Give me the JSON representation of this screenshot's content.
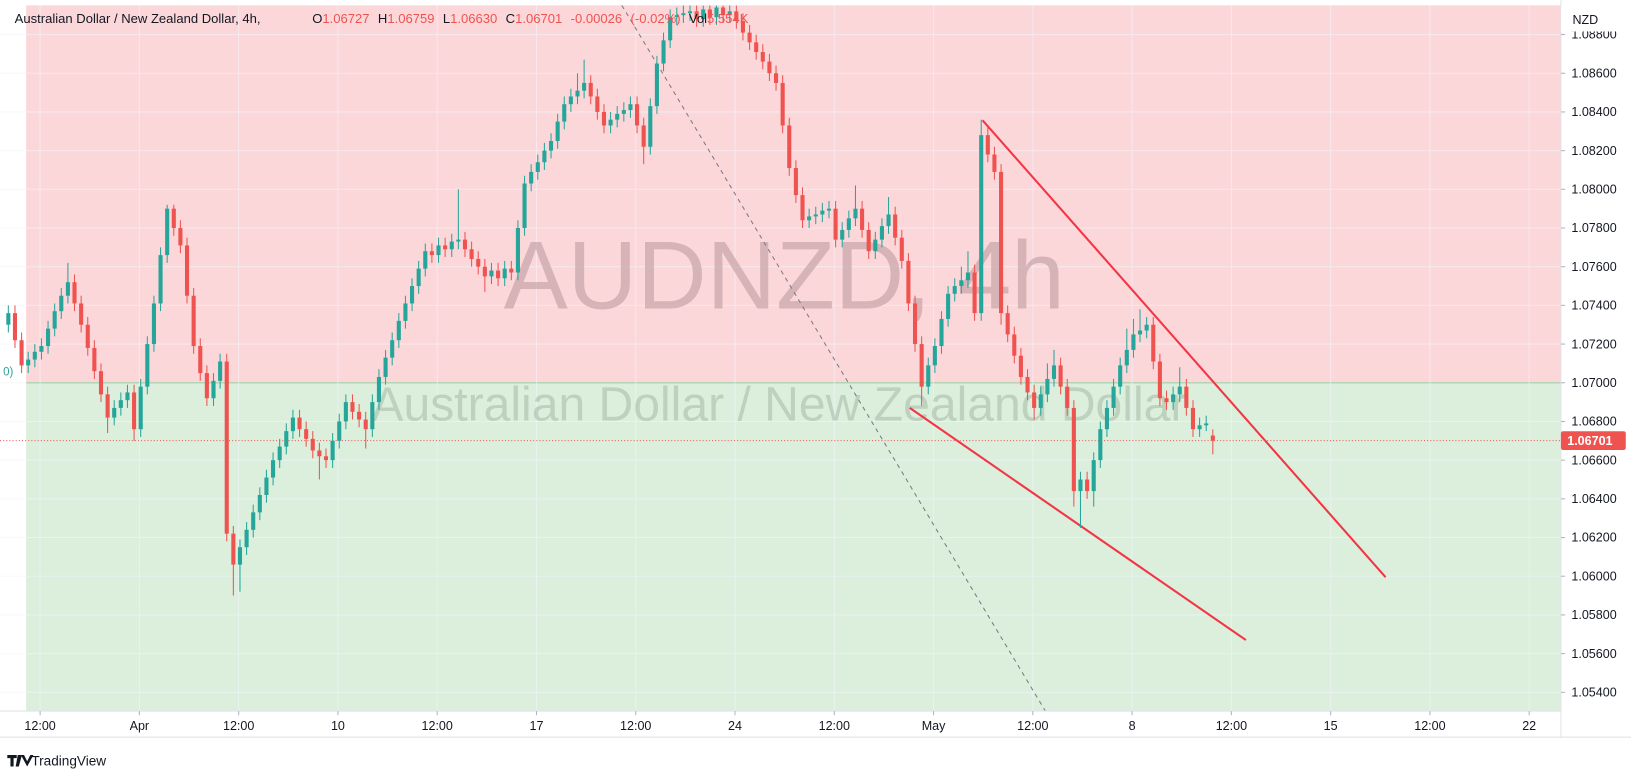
{
  "chart_data": {
    "type": "candlestick",
    "title": "Australian Dollar / New Zealand Dollar, 4h,",
    "ohlc_header": [
      {
        "label": "O",
        "value": "1.06727"
      },
      {
        "label": "H",
        "value": "1.06759"
      },
      {
        "label": "L",
        "value": "1.06630"
      },
      {
        "label": "C",
        "value": "1.06701"
      },
      {
        "label": "",
        "value": "-0.00026"
      },
      {
        "label": "",
        "value": "(-0.02%)"
      },
      {
        "label": "Vol",
        "value": "5.554K"
      }
    ],
    "watermark": "AUDNZD, 4h",
    "watermark_subtitle": "Australian Dollar / New Zealand Dollar",
    "currency": "NZD",
    "edge_fragment": "0)",
    "brand": "TradingView",
    "last_price": 1.06701,
    "position_entry": 1.07,
    "up_color": "#26a69a",
    "down_color": "#ef5350",
    "grid": true,
    "xlim": [
      -1.26,
      234.6
    ],
    "ylim": [
      1.05303,
      1.08951
    ],
    "xticks": [
      {
        "value": 4.8,
        "label": "12:00"
      },
      {
        "value": 19.8,
        "label": "Apr"
      },
      {
        "value": 34.8,
        "label": "12:00"
      },
      {
        "value": 49.8,
        "label": "10"
      },
      {
        "value": 64.8,
        "label": "12:00"
      },
      {
        "value": 79.8,
        "label": "17"
      },
      {
        "value": 94.8,
        "label": "12:00"
      },
      {
        "value": 109.8,
        "label": "24"
      },
      {
        "value": 124.8,
        "label": "12:00"
      },
      {
        "value": 139.8,
        "label": "May"
      },
      {
        "value": 154.8,
        "label": "12:00"
      },
      {
        "value": 169.8,
        "label": "8"
      },
      {
        "value": 184.8,
        "label": "12:00"
      },
      {
        "value": 199.8,
        "label": "15"
      },
      {
        "value": 214.8,
        "label": "12:00"
      },
      {
        "value": 229.8,
        "label": "22"
      }
    ],
    "yticks": [
      {
        "value": 1.054,
        "label": "1.05400"
      },
      {
        "value": 1.056,
        "label": "1.05600"
      },
      {
        "value": 1.058,
        "label": "1.05800"
      },
      {
        "value": 1.06,
        "label": "1.06000"
      },
      {
        "value": 1.062,
        "label": "1.06200"
      },
      {
        "value": 1.064,
        "label": "1.06400"
      },
      {
        "value": 1.066,
        "label": "1.06600"
      },
      {
        "value": 1.068,
        "label": "1.06800"
      },
      {
        "value": 1.07,
        "label": "1.07000"
      },
      {
        "value": 1.072,
        "label": "1.07200"
      },
      {
        "value": 1.074,
        "label": "1.07400"
      },
      {
        "value": 1.076,
        "label": "1.07600"
      },
      {
        "value": 1.078,
        "label": "1.07800"
      },
      {
        "value": 1.08,
        "label": "1.08000"
      },
      {
        "value": 1.082,
        "label": "1.08200"
      },
      {
        "value": 1.084,
        "label": "1.08400"
      },
      {
        "value": 1.086,
        "label": "1.08600"
      },
      {
        "value": 1.088,
        "label": "1.08800"
      }
    ],
    "drawings": [
      {
        "kind": "trend",
        "color": "#f23645",
        "x": [
          147.2,
          208.1
        ],
        "y": [
          1.08357,
          1.05995
        ]
      },
      {
        "kind": "trend",
        "color": "#f23645",
        "x": [
          136.2,
          187.0
        ],
        "y": [
          1.0687,
          1.0567
        ]
      },
      {
        "kind": "dashed",
        "color": "#787b86",
        "x": [
          92.7,
          156.7
        ],
        "y": [
          1.08951,
          1.05303
        ]
      }
    ],
    "ohlc": [
      [
        1.073,
        1.074,
        1.0726,
        1.0736
      ],
      [
        1.0736,
        1.074,
        1.0718,
        1.0722
      ],
      [
        1.0722,
        1.0726,
        1.0705,
        1.0709
      ],
      [
        1.0709,
        1.0716,
        1.0705,
        1.0712
      ],
      [
        1.0712,
        1.072,
        1.0708,
        1.0716
      ],
      [
        1.0716,
        1.0723,
        1.0712,
        1.0719
      ],
      [
        1.0719,
        1.0732,
        1.0715,
        1.0728
      ],
      [
        1.0728,
        1.0741,
        1.0724,
        1.0737
      ],
      [
        1.0737,
        1.0749,
        1.0733,
        1.0745
      ],
      [
        1.0745,
        1.0762,
        1.0741,
        1.0752
      ],
      [
        1.0752,
        1.0756,
        1.0737,
        1.0741
      ],
      [
        1.0741,
        1.0745,
        1.0726,
        1.073
      ],
      [
        1.073,
        1.0734,
        1.0714,
        1.0718
      ],
      [
        1.0718,
        1.0722,
        1.0702,
        1.0706
      ],
      [
        1.0706,
        1.071,
        1.069,
        1.0694
      ],
      [
        1.0694,
        1.0698,
        1.0674,
        1.0682
      ],
      [
        1.0682,
        1.0691,
        1.0678,
        1.0687
      ],
      [
        1.0687,
        1.0695,
        1.0683,
        1.0691
      ],
      [
        1.0691,
        1.0699,
        1.0687,
        1.0695
      ],
      [
        1.0695,
        1.0699,
        1.067,
        1.0676
      ],
      [
        1.0676,
        1.0702,
        1.0672,
        1.0698
      ],
      [
        1.0698,
        1.0724,
        1.0694,
        1.072
      ],
      [
        1.072,
        1.0745,
        1.0716,
        1.0741
      ],
      [
        1.0741,
        1.077,
        1.0737,
        1.0766
      ],
      [
        1.0766,
        1.0792,
        1.0762,
        1.079
      ],
      [
        1.079,
        1.0792,
        1.0776,
        1.078
      ],
      [
        1.078,
        1.0784,
        1.0767,
        1.0771
      ],
      [
        1.0771,
        1.0775,
        1.0741,
        1.0745
      ],
      [
        1.0745,
        1.0749,
        1.0715,
        1.0719
      ],
      [
        1.0719,
        1.0723,
        1.0701,
        1.0705
      ],
      [
        1.0705,
        1.0709,
        1.0688,
        1.0692
      ],
      [
        1.0692,
        1.0705,
        1.0688,
        1.0701
      ],
      [
        1.0701,
        1.0715,
        1.0697,
        1.0711
      ],
      [
        1.0711,
        1.0715,
        1.0618,
        1.0622
      ],
      [
        1.0622,
        1.0626,
        1.059,
        1.0606
      ],
      [
        1.0606,
        1.0619,
        1.0592,
        1.0615
      ],
      [
        1.0615,
        1.0628,
        1.0611,
        1.0624
      ],
      [
        1.0624,
        1.0637,
        1.062,
        1.0633
      ],
      [
        1.0633,
        1.0646,
        1.0629,
        1.0642
      ],
      [
        1.0642,
        1.0655,
        1.0638,
        1.0651
      ],
      [
        1.0651,
        1.0664,
        1.0647,
        1.066
      ],
      [
        1.066,
        1.0671,
        1.0656,
        1.0667
      ],
      [
        1.0667,
        1.0679,
        1.0663,
        1.0675
      ],
      [
        1.0675,
        1.0686,
        1.0671,
        1.0682
      ],
      [
        1.0682,
        1.0686,
        1.0672,
        1.0676
      ],
      [
        1.0676,
        1.068,
        1.0667,
        1.0671
      ],
      [
        1.0671,
        1.0675,
        1.0661,
        1.0665
      ],
      [
        1.0665,
        1.0669,
        1.065,
        1.0662
      ],
      [
        1.0662,
        1.0666,
        1.0656,
        1.066
      ],
      [
        1.066,
        1.0674,
        1.0656,
        1.067
      ],
      [
        1.067,
        1.0684,
        1.0666,
        1.068
      ],
      [
        1.068,
        1.0694,
        1.0676,
        1.069
      ],
      [
        1.069,
        1.0694,
        1.0681,
        1.0685
      ],
      [
        1.0685,
        1.0689,
        1.0677,
        1.0681
      ],
      [
        1.0681,
        1.0685,
        1.0666,
        1.0676
      ],
      [
        1.0676,
        1.0694,
        1.0672,
        1.069
      ],
      [
        1.069,
        1.0707,
        1.0686,
        1.0703
      ],
      [
        1.0703,
        1.0717,
        1.0699,
        1.0713
      ],
      [
        1.0713,
        1.0726,
        1.0709,
        1.0722
      ],
      [
        1.0722,
        1.0736,
        1.0718,
        1.0732
      ],
      [
        1.0732,
        1.0745,
        1.0728,
        1.0741
      ],
      [
        1.0741,
        1.0754,
        1.0737,
        1.075
      ],
      [
        1.075,
        1.0763,
        1.0746,
        1.0759
      ],
      [
        1.0759,
        1.0772,
        1.0755,
        1.0768
      ],
      [
        1.0768,
        1.0772,
        1.0762,
        1.0766
      ],
      [
        1.0766,
        1.0775,
        1.0762,
        1.0771
      ],
      [
        1.0771,
        1.0775,
        1.0765,
        1.0769
      ],
      [
        1.0769,
        1.0777,
        1.0765,
        1.0773
      ],
      [
        1.0773,
        1.08,
        1.0769,
        1.0774
      ],
      [
        1.0774,
        1.0778,
        1.0765,
        1.0769
      ],
      [
        1.0769,
        1.0773,
        1.076,
        1.0764
      ],
      [
        1.0764,
        1.0768,
        1.0756,
        1.076
      ],
      [
        1.076,
        1.0764,
        1.0747,
        1.0755
      ],
      [
        1.0755,
        1.0762,
        1.0751,
        1.0758
      ],
      [
        1.0758,
        1.0762,
        1.075,
        1.0754
      ],
      [
        1.0754,
        1.0763,
        1.075,
        1.0759
      ],
      [
        1.0759,
        1.0763,
        1.0753,
        1.0757
      ],
      [
        1.0757,
        1.0784,
        1.0753,
        1.078
      ],
      [
        1.078,
        1.0807,
        1.0776,
        1.0803
      ],
      [
        1.0803,
        1.0813,
        1.0799,
        1.0809
      ],
      [
        1.0809,
        1.0818,
        1.0805,
        1.0814
      ],
      [
        1.0814,
        1.0824,
        1.081,
        1.082
      ],
      [
        1.082,
        1.0829,
        1.0816,
        1.0825
      ],
      [
        1.0825,
        1.0839,
        1.0821,
        1.0835
      ],
      [
        1.0835,
        1.0848,
        1.0831,
        1.0844
      ],
      [
        1.0844,
        1.0852,
        1.084,
        1.0848
      ],
      [
        1.0848,
        1.086,
        1.0844,
        1.0851
      ],
      [
        1.0851,
        1.0867,
        1.0847,
        1.0855
      ],
      [
        1.0855,
        1.0859,
        1.0844,
        1.0848
      ],
      [
        1.0848,
        1.0852,
        1.0836,
        1.084
      ],
      [
        1.084,
        1.0844,
        1.0829,
        1.0833
      ],
      [
        1.0833,
        1.084,
        1.0829,
        1.0836
      ],
      [
        1.0836,
        1.0843,
        1.0832,
        1.0839
      ],
      [
        1.0839,
        1.0845,
        1.0835,
        1.0841
      ],
      [
        1.0841,
        1.0848,
        1.0837,
        1.0844
      ],
      [
        1.0844,
        1.0848,
        1.0829,
        1.0833
      ],
      [
        1.0833,
        1.0837,
        1.0813,
        1.0822
      ],
      [
        1.0822,
        1.0847,
        1.0818,
        1.0843
      ],
      [
        1.0843,
        1.0869,
        1.0839,
        1.0865
      ],
      [
        1.0865,
        1.0881,
        1.0861,
        1.0877
      ],
      [
        1.0877,
        1.0893,
        1.0873,
        1.0889
      ],
      [
        1.0889,
        1.0894,
        1.0885,
        1.089
      ],
      [
        1.089,
        1.0895,
        1.0886,
        1.0891
      ],
      [
        1.0891,
        1.0895,
        1.0887,
        1.0892
      ],
      [
        1.0892,
        1.0895,
        1.0884,
        1.0888
      ],
      [
        1.0888,
        1.0895,
        1.0884,
        1.0893
      ],
      [
        1.0893,
        1.0895,
        1.0885,
        1.0889
      ],
      [
        1.0889,
        1.0895,
        1.0885,
        1.0894
      ],
      [
        1.0894,
        1.0895,
        1.0886,
        1.089
      ],
      [
        1.089,
        1.0895,
        1.0886,
        1.0892
      ],
      [
        1.0892,
        1.0895,
        1.0883,
        1.0887
      ],
      [
        1.0887,
        1.0891,
        1.0877,
        1.0881
      ],
      [
        1.0881,
        1.0885,
        1.0872,
        1.0876
      ],
      [
        1.0876,
        1.088,
        1.0867,
        1.0871
      ],
      [
        1.0871,
        1.0875,
        1.0862,
        1.0866
      ],
      [
        1.0866,
        1.087,
        1.0856,
        1.086
      ],
      [
        1.086,
        1.0864,
        1.0851,
        1.0855
      ],
      [
        1.0855,
        1.0859,
        1.0829,
        1.0833
      ],
      [
        1.0833,
        1.0837,
        1.0807,
        1.0811
      ],
      [
        1.0811,
        1.0815,
        1.0793,
        1.0797
      ],
      [
        1.0797,
        1.0801,
        1.078,
        1.0784
      ],
      [
        1.0784,
        1.079,
        1.078,
        1.0786
      ],
      [
        1.0786,
        1.0791,
        1.0782,
        1.0787
      ],
      [
        1.0787,
        1.0793,
        1.0783,
        1.0789
      ],
      [
        1.0789,
        1.0794,
        1.0785,
        1.079
      ],
      [
        1.079,
        1.0794,
        1.077,
        1.0774
      ],
      [
        1.0774,
        1.0783,
        1.077,
        1.0779
      ],
      [
        1.0779,
        1.0789,
        1.0775,
        1.0785
      ],
      [
        1.0785,
        1.0802,
        1.0781,
        1.079
      ],
      [
        1.079,
        1.0794,
        1.0775,
        1.0779
      ],
      [
        1.0779,
        1.0783,
        1.0764,
        1.0768
      ],
      [
        1.0768,
        1.0778,
        1.0764,
        1.0774
      ],
      [
        1.0774,
        1.0785,
        1.077,
        1.0781
      ],
      [
        1.0781,
        1.0796,
        1.0777,
        1.0787
      ],
      [
        1.0787,
        1.0791,
        1.0771,
        1.0775
      ],
      [
        1.0775,
        1.0779,
        1.0759,
        1.0763
      ],
      [
        1.0763,
        1.0767,
        1.0737,
        1.0741
      ],
      [
        1.0741,
        1.0745,
        1.0716,
        1.072
      ],
      [
        1.072,
        1.0724,
        1.0688,
        1.0698
      ],
      [
        1.0698,
        1.0713,
        1.0694,
        1.0709
      ],
      [
        1.0709,
        1.0723,
        1.0705,
        1.0719
      ],
      [
        1.0719,
        1.0737,
        1.0715,
        1.0733
      ],
      [
        1.0733,
        1.075,
        1.0729,
        1.0746
      ],
      [
        1.0746,
        1.0754,
        1.0742,
        1.075
      ],
      [
        1.075,
        1.076,
        1.0746,
        1.0753
      ],
      [
        1.0753,
        1.0768,
        1.0749,
        1.0757
      ],
      [
        1.0757,
        1.0761,
        1.0732,
        1.0736
      ],
      [
        1.0736,
        1.0836,
        1.0732,
        1.0828
      ],
      [
        1.0828,
        1.0832,
        1.0814,
        1.0818
      ],
      [
        1.0818,
        1.0822,
        1.0805,
        1.0809
      ],
      [
        1.0809,
        1.0813,
        1.073,
        1.0736
      ],
      [
        1.0736,
        1.074,
        1.0721,
        1.0725
      ],
      [
        1.0725,
        1.0729,
        1.071,
        1.0714
      ],
      [
        1.0714,
        1.0718,
        1.0699,
        1.0703
      ],
      [
        1.0703,
        1.0707,
        1.0691,
        1.0695
      ],
      [
        1.0695,
        1.0699,
        1.0681,
        1.0687
      ],
      [
        1.0687,
        1.0698,
        1.0683,
        1.0694
      ],
      [
        1.0694,
        1.071,
        1.069,
        1.0702
      ],
      [
        1.0702,
        1.0717,
        1.0698,
        1.0709
      ],
      [
        1.0709,
        1.0713,
        1.0694,
        1.0698
      ],
      [
        1.0698,
        1.0702,
        1.0683,
        1.0687
      ],
      [
        1.0687,
        1.0691,
        1.0636,
        1.0644
      ],
      [
        1.0644,
        1.0654,
        1.0625,
        1.065
      ],
      [
        1.065,
        1.0654,
        1.064,
        1.0644
      ],
      [
        1.0644,
        1.0664,
        1.0636,
        1.066
      ],
      [
        1.066,
        1.068,
        1.0656,
        1.0676
      ],
      [
        1.0676,
        1.0691,
        1.0672,
        1.0687
      ],
      [
        1.0687,
        1.0702,
        1.0683,
        1.0698
      ],
      [
        1.0698,
        1.0713,
        1.0694,
        1.0709
      ],
      [
        1.0709,
        1.0728,
        1.0705,
        1.0717
      ],
      [
        1.0717,
        1.0733,
        1.0713,
        1.0725
      ],
      [
        1.0725,
        1.0738,
        1.0721,
        1.0727
      ],
      [
        1.0727,
        1.0734,
        1.0723,
        1.073
      ],
      [
        1.073,
        1.0734,
        1.0707,
        1.0711
      ],
      [
        1.0711,
        1.0715,
        1.0688,
        1.0692
      ],
      [
        1.0692,
        1.0696,
        1.0686,
        1.069
      ],
      [
        1.069,
        1.0698,
        1.0686,
        1.0694
      ],
      [
        1.0694,
        1.0708,
        1.069,
        1.0698
      ],
      [
        1.0698,
        1.0702,
        1.0683,
        1.0687
      ],
      [
        1.0687,
        1.0691,
        1.0672,
        1.0676
      ],
      [
        1.0676,
        1.0682,
        1.0672,
        1.0678
      ],
      [
        1.0678,
        1.0683,
        1.0675,
        1.0679
      ],
      [
        1.06727,
        1.06759,
        1.0663,
        1.06701
      ]
    ]
  }
}
